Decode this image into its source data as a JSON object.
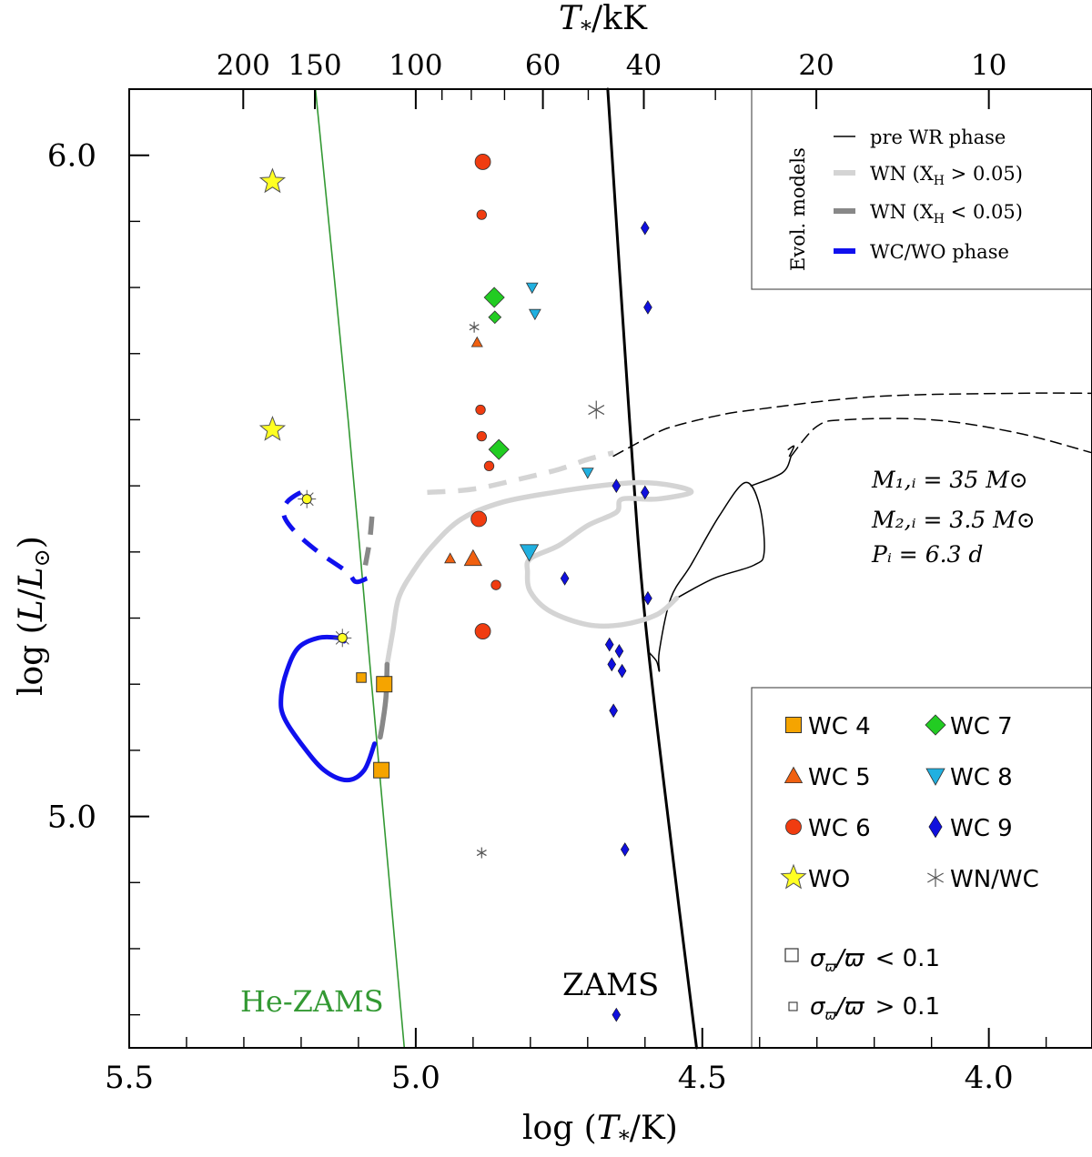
{
  "chart_data": {
    "type": "scatter",
    "title": "",
    "xlabel_prefix": "log (",
    "xlabel_var": "T",
    "xlabel_sub": "*",
    "xlabel_suffix": "/K)",
    "ylabel_prefix": "log (",
    "ylabel_var": "L",
    "ylabel_mid": "/",
    "ylabel_var2": "L",
    "ylabel_sub": "⊙",
    "ylabel_suffix": ")",
    "top_xlabel_var": "T",
    "top_xlabel_sub": "*",
    "top_xlabel_suffix": "/kK",
    "xlim": [
      5.5,
      3.82
    ],
    "ylim": [
      4.65,
      6.1
    ],
    "x_reversed": true,
    "x_ticks": [
      {
        "v": 5.5,
        "label": "5.5"
      },
      {
        "v": 5.0,
        "label": "5.0"
      },
      {
        "v": 4.5,
        "label": "4.5"
      },
      {
        "v": 4.0,
        "label": "4.0"
      }
    ],
    "x_minor_ticks": [
      5.4,
      5.3,
      5.2,
      5.1,
      4.9,
      4.8,
      4.7,
      4.6,
      4.4,
      4.3,
      4.2,
      4.1,
      3.9
    ],
    "y_ticks": [
      {
        "v": 5.0,
        "label": "5.0"
      },
      {
        "v": 6.0,
        "label": "6.0"
      }
    ],
    "y_minor_ticks": [
      4.7,
      4.8,
      4.9,
      5.1,
      5.2,
      5.3,
      5.4,
      5.5,
      5.6,
      5.7,
      5.8,
      5.9
    ],
    "top_ticks": [
      {
        "t": 200,
        "label": "200"
      },
      {
        "t": 150,
        "label": "150"
      },
      {
        "t": 100,
        "label": "100"
      },
      {
        "t": 60,
        "label": "60"
      },
      {
        "t": 40,
        "label": "40"
      },
      {
        "t": 20,
        "label": "20"
      },
      {
        "t": 10,
        "label": "10"
      }
    ],
    "top_minor_ticks": [
      90,
      80,
      70,
      50,
      30
    ],
    "colors": {
      "wc4": "#f5a400",
      "wc5": "#f06010",
      "wc6": "#f03c10",
      "wc7": "#22cc22",
      "wc8": "#20b0e0",
      "wc9": "#1010dd",
      "wo": "#ffff22",
      "wnwc": "#555555",
      "zams": "#000000",
      "hezams": "#339933",
      "pre_wr": "#000000",
      "wn_h": "#d4d4d4",
      "wn_noh": "#888888",
      "wc_wo": "#1010ee"
    },
    "legend_lines": {
      "box_title": "Evol. models",
      "items": [
        {
          "label": "pre WR phase"
        },
        {
          "label_prefix": "WN (X",
          "label_sub": "H",
          "label_suffix": " > 0.05)"
        },
        {
          "label_prefix": "WN (X",
          "label_sub": "H",
          "label_suffix": " < 0.05)"
        },
        {
          "label": "WC/WO phase"
        }
      ]
    },
    "legend_markers": {
      "items": [
        {
          "label": "WC 4",
          "marker": "square",
          "color_key": "wc4"
        },
        {
          "label": "WC 7",
          "marker": "diamond",
          "color_key": "wc7"
        },
        {
          "label": "WC 5",
          "marker": "triangle-up",
          "color_key": "wc5"
        },
        {
          "label": "WC 8",
          "marker": "triangle-down",
          "color_key": "wc8"
        },
        {
          "label": "WC 6",
          "marker": "circle",
          "color_key": "wc6"
        },
        {
          "label": "WC 9",
          "marker": "diamond",
          "color_key": "wc9"
        },
        {
          "label": "WO",
          "marker": "star",
          "color_key": "wo"
        },
        {
          "label": "WN/WC",
          "marker": "asterisk",
          "color_key": "wnwc"
        }
      ],
      "size_items": [
        {
          "label": "σ_ϖ/ϖ < 0.1",
          "size": "large"
        },
        {
          "label": "σ_ϖ/ϖ > 0.1",
          "size": "small"
        }
      ]
    },
    "annotations": {
      "zams": "ZAMS",
      "hezams": "He-ZAMS",
      "m1": "M₁,ᵢ = 35 M⊙",
      "m2": "M₂,ᵢ = 3.5 M⊙",
      "p": "Pᵢ = 6.3 d"
    },
    "series": [
      {
        "type": "WC4",
        "points": [
          {
            "x": 5.095,
            "y": 5.21,
            "big": false
          },
          {
            "x": 5.055,
            "y": 5.2,
            "big": true
          },
          {
            "x": 5.06,
            "y": 5.07,
            "big": true
          }
        ]
      },
      {
        "type": "WC5",
        "points": [
          {
            "x": 4.893,
            "y": 5.717,
            "big": false
          },
          {
            "x": 4.94,
            "y": 5.39,
            "big": false
          },
          {
            "x": 4.9,
            "y": 5.39,
            "big": true
          }
        ]
      },
      {
        "type": "WC6",
        "points": [
          {
            "x": 4.883,
            "y": 5.99,
            "big": true
          },
          {
            "x": 4.885,
            "y": 5.91,
            "big": false
          },
          {
            "x": 4.887,
            "y": 5.615,
            "big": false
          },
          {
            "x": 4.885,
            "y": 5.575,
            "big": false
          },
          {
            "x": 4.872,
            "y": 5.53,
            "big": false
          },
          {
            "x": 4.89,
            "y": 5.45,
            "big": true
          },
          {
            "x": 4.86,
            "y": 5.35,
            "big": false
          },
          {
            "x": 4.883,
            "y": 5.28,
            "big": true
          }
        ]
      },
      {
        "type": "WC7",
        "points": [
          {
            "x": 4.863,
            "y": 5.785,
            "big": true
          },
          {
            "x": 4.862,
            "y": 5.755,
            "big": false
          },
          {
            "x": 4.855,
            "y": 5.555,
            "big": true
          }
        ]
      },
      {
        "type": "WC8",
        "points": [
          {
            "x": 4.797,
            "y": 5.8,
            "big": false
          },
          {
            "x": 4.792,
            "y": 5.76,
            "big": false
          },
          {
            "x": 4.7,
            "y": 5.52,
            "big": false
          },
          {
            "x": 4.802,
            "y": 5.4,
            "big": true
          }
        ]
      },
      {
        "type": "WC9",
        "points": [
          {
            "x": 4.6,
            "y": 5.89,
            "big": false
          },
          {
            "x": 4.595,
            "y": 5.77,
            "big": false
          },
          {
            "x": 4.65,
            "y": 5.5,
            "big": false
          },
          {
            "x": 4.6,
            "y": 5.49,
            "big": false
          },
          {
            "x": 4.74,
            "y": 5.36,
            "big": false
          },
          {
            "x": 4.595,
            "y": 5.33,
            "big": false
          },
          {
            "x": 4.662,
            "y": 5.26,
            "big": false
          },
          {
            "x": 4.645,
            "y": 5.25,
            "big": false
          },
          {
            "x": 4.658,
            "y": 5.23,
            "big": false
          },
          {
            "x": 4.64,
            "y": 5.22,
            "big": false
          },
          {
            "x": 4.655,
            "y": 5.16,
            "big": false
          },
          {
            "x": 4.635,
            "y": 4.95,
            "big": false
          },
          {
            "x": 4.65,
            "y": 4.7,
            "big": false
          }
        ]
      },
      {
        "type": "WO",
        "points": [
          {
            "x": 5.25,
            "y": 5.96,
            "big": true
          },
          {
            "x": 5.25,
            "y": 5.585,
            "big": true
          }
        ]
      },
      {
        "type": "WN/WC",
        "points": [
          {
            "x": 4.898,
            "y": 5.74,
            "big": false
          },
          {
            "x": 4.685,
            "y": 5.615,
            "big": true
          },
          {
            "x": 4.885,
            "y": 4.945,
            "big": false
          }
        ]
      }
    ],
    "tracks": [
      {
        "phase": "zams",
        "points": [
          [
            4.665,
            6.1
          ],
          [
            4.627,
            5.6
          ],
          [
            4.6,
            5.3
          ],
          [
            4.553,
            4.95
          ],
          [
            4.51,
            4.65
          ]
        ]
      },
      {
        "phase": "hezams",
        "points": [
          [
            5.175,
            6.1
          ],
          [
            5.118,
            5.6
          ],
          [
            5.077,
            5.2
          ],
          [
            5.02,
            4.65
          ]
        ]
      },
      {
        "phase": "pre_wr",
        "dashed": false,
        "points": [
          [
            4.595,
            5.25
          ],
          [
            4.58,
            5.235
          ],
          [
            4.575,
            5.22
          ],
          [
            4.575,
            5.25
          ],
          [
            4.555,
            5.33
          ],
          [
            4.52,
            5.38
          ],
          [
            4.47,
            5.455
          ],
          [
            4.425,
            5.505
          ],
          [
            4.4,
            5.47
          ],
          [
            4.392,
            5.4
          ],
          [
            4.41,
            5.38
          ],
          [
            4.48,
            5.36
          ],
          [
            4.545,
            5.33
          ]
        ]
      },
      {
        "phase": "pre_wr",
        "dashed": false,
        "points": [
          [
            4.415,
            5.5
          ],
          [
            4.36,
            5.52
          ],
          [
            4.345,
            5.545
          ]
        ]
      },
      {
        "phase": "pre_wr",
        "dashed": false,
        "points": [
          [
            4.35,
            5.555
          ],
          [
            4.34,
            5.56
          ],
          [
            4.348,
            5.545
          ]
        ]
      },
      {
        "phase": "pre_wr",
        "dashed": true,
        "points": [
          [
            4.345,
            5.545
          ],
          [
            4.3,
            5.59
          ],
          [
            4.25,
            5.6
          ],
          [
            4.1,
            5.6
          ],
          [
            3.95,
            5.58
          ],
          [
            3.82,
            5.55
          ]
        ]
      },
      {
        "phase": "pre_wr",
        "dashed": true,
        "points": [
          [
            4.655,
            5.545
          ],
          [
            4.58,
            5.58
          ],
          [
            4.55,
            5.59
          ],
          [
            4.48,
            5.605
          ],
          [
            4.41,
            5.615
          ],
          [
            4.2,
            5.635
          ],
          [
            3.95,
            5.64
          ],
          [
            3.82,
            5.64
          ]
        ]
      },
      {
        "phase": "wn_h",
        "dashed": false,
        "points": [
          [
            5.05,
            5.23
          ],
          [
            5.04,
            5.28
          ],
          [
            5.03,
            5.33
          ],
          [
            5.005,
            5.37
          ],
          [
            4.97,
            5.41
          ],
          [
            4.92,
            5.45
          ],
          [
            4.85,
            5.475
          ],
          [
            4.76,
            5.49
          ],
          [
            4.68,
            5.5
          ],
          [
            4.61,
            5.505
          ],
          [
            4.55,
            5.5
          ],
          [
            4.52,
            5.49
          ],
          [
            4.58,
            5.48
          ],
          [
            4.64,
            5.48
          ],
          [
            4.65,
            5.46
          ],
          [
            4.7,
            5.44
          ],
          [
            4.75,
            5.41
          ],
          [
            4.8,
            5.39
          ],
          [
            4.805,
            5.37
          ],
          [
            4.8,
            5.34
          ],
          [
            4.765,
            5.31
          ],
          [
            4.7,
            5.29
          ],
          [
            4.64,
            5.29
          ],
          [
            4.58,
            5.305
          ],
          [
            4.545,
            5.33
          ]
        ]
      },
      {
        "phase": "wn_h",
        "dashed": true,
        "points": [
          [
            4.98,
            5.49
          ],
          [
            4.9,
            5.495
          ],
          [
            4.82,
            5.51
          ],
          [
            4.75,
            5.525
          ],
          [
            4.7,
            5.54
          ],
          [
            4.655,
            5.55
          ]
        ]
      },
      {
        "phase": "wn_noh",
        "dashed": false,
        "points": [
          [
            5.062,
            5.12
          ],
          [
            5.058,
            5.14
          ],
          [
            5.052,
            5.18
          ],
          [
            5.05,
            5.23
          ]
        ]
      },
      {
        "phase": "wn_noh",
        "dashed": true,
        "points": [
          [
            5.088,
            5.38
          ],
          [
            5.08,
            5.42
          ],
          [
            5.075,
            5.47
          ]
        ]
      },
      {
        "phase": "wc_wo",
        "dashed": false,
        "points": [
          [
            5.072,
            5.11
          ],
          [
            5.09,
            5.07
          ],
          [
            5.12,
            5.055
          ],
          [
            5.16,
            5.07
          ],
          [
            5.2,
            5.11
          ],
          [
            5.23,
            5.15
          ],
          [
            5.235,
            5.18
          ],
          [
            5.225,
            5.22
          ],
          [
            5.205,
            5.255
          ],
          [
            5.17,
            5.27
          ],
          [
            5.135,
            5.27
          ],
          [
            5.125,
            5.265
          ]
        ]
      },
      {
        "phase": "wc_wo",
        "dashed": true,
        "points": [
          [
            5.085,
            5.36
          ],
          [
            5.105,
            5.355
          ],
          [
            5.12,
            5.37
          ],
          [
            5.17,
            5.4
          ],
          [
            5.21,
            5.43
          ],
          [
            5.23,
            5.455
          ],
          [
            5.225,
            5.475
          ],
          [
            5.2,
            5.49
          ],
          [
            5.19,
            5.485
          ]
        ]
      },
      {
        "phase": "wc_wo_marker",
        "points": [
          [
            5.19,
            5.48
          ],
          [
            5.128,
            5.27
          ]
        ]
      }
    ]
  }
}
